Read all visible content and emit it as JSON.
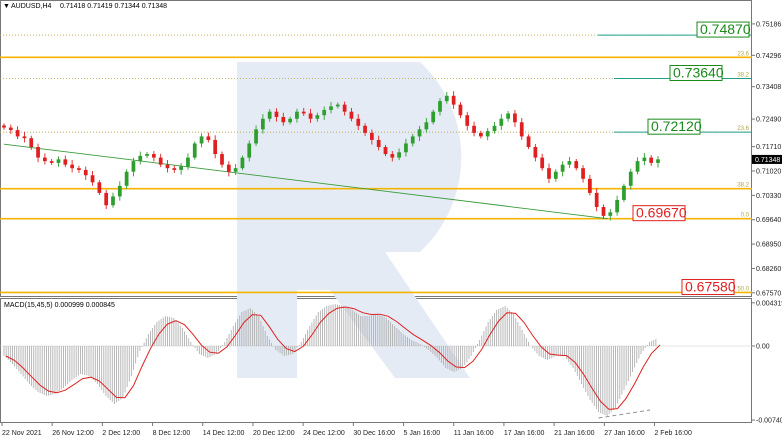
{
  "header": {
    "menu_icon": "triangle-down-icon",
    "symbol": "AUDUSD,H4",
    "quotes": "0.71418 0.71419 0.71344 0.71348"
  },
  "macd_header": {
    "label": "MACD(15,45,5) 0.000999 0.000845"
  },
  "watermark_icon": "r-logo-watermark",
  "colors": {
    "bull": "#2e9e2e",
    "bear": "#e02020",
    "fib_line": "#b5a642",
    "gold_line": "#f5b400",
    "target_green": "#1a8a1a",
    "target_red": "#e02020",
    "teal": "#1f9e8e",
    "trend": "#3a9a3a",
    "price_box": "#000000",
    "macd_hist": "#b0b0b0",
    "macd_signal": "#e02020"
  },
  "chart_data": [
    {
      "type": "candlestick",
      "ylim": [
        0.6748,
        0.7558
      ],
      "y_ticks": [
        "0.75186",
        "0.74296",
        "0.73408",
        "0.72490",
        "0.71710",
        "0.71020",
        "0.70330",
        "0.69640",
        "0.68950",
        "0.68260",
        "0.67570"
      ],
      "x_ticks": [
        "22 Nov 2021",
        "26 Nov 12:00",
        "2 Dec 12:00",
        "8 Dec 12:00",
        "14 Dec 12:00",
        "20 Dec 12:00",
        "24 Dec 12:00",
        "30 Dec 16:00",
        "5 Jan 16:00",
        "11 Jan 16:00",
        "17 Jan 16:00",
        "21 Jan 16:00",
        "27 Jan 16:00",
        "2 Feb 16:00"
      ],
      "current_price": "0.71348",
      "close_series": [
        0.7225,
        0.7218,
        0.72,
        0.7195,
        0.717,
        0.714,
        0.713,
        0.7125,
        0.7135,
        0.712,
        0.711,
        0.7105,
        0.709,
        0.707,
        0.704,
        0.7005,
        0.703,
        0.706,
        0.71,
        0.713,
        0.7145,
        0.715,
        0.714,
        0.712,
        0.711,
        0.7105,
        0.7115,
        0.714,
        0.718,
        0.72,
        0.719,
        0.715,
        0.712,
        0.71,
        0.711,
        0.714,
        0.718,
        0.722,
        0.725,
        0.727,
        0.7255,
        0.724,
        0.725,
        0.727,
        0.7265,
        0.725,
        0.726,
        0.7275,
        0.7285,
        0.729,
        0.727,
        0.725,
        0.723,
        0.721,
        0.719,
        0.717,
        0.715,
        0.714,
        0.7155,
        0.718,
        0.72,
        0.722,
        0.724,
        0.727,
        0.73,
        0.7315,
        0.729,
        0.726,
        0.723,
        0.721,
        0.72,
        0.7215,
        0.723,
        0.725,
        0.7265,
        0.724,
        0.72,
        0.717,
        0.714,
        0.711,
        0.708,
        0.71,
        0.712,
        0.713,
        0.711,
        0.708,
        0.704,
        0.7,
        0.6975,
        0.6985,
        0.702,
        0.706,
        0.71,
        0.713,
        0.714,
        0.7125,
        0.7135
      ],
      "fib_levels": [
        {
          "label": "50.0",
          "value": 0.7487
        },
        {
          "label": "23.6",
          "value": 0.7424
        },
        {
          "label": "38.2",
          "value": 0.7364
        },
        {
          "label": "23.6",
          "value": 0.7212
        },
        {
          "label": "38.2",
          "value": 0.7052
        },
        {
          "label": "0.0",
          "value": 0.6967
        },
        {
          "label": "50.0",
          "value": 0.6758
        }
      ],
      "gold_levels": [
        0.7424,
        0.7052,
        0.6967,
        0.6758
      ],
      "targets": [
        {
          "label": "0.74870",
          "value": 0.7487,
          "color": "green"
        },
        {
          "label": "0.73640",
          "value": 0.7364,
          "color": "green"
        },
        {
          "label": "0.72120",
          "value": 0.7212,
          "color": "green"
        },
        {
          "label": "0.69670",
          "value": 0.6967,
          "color": "red"
        },
        {
          "label": "0.67580",
          "value": 0.6758,
          "color": "red"
        }
      ],
      "trend_line": {
        "start": {
          "bar": 0,
          "value": 0.7178
        },
        "end": {
          "bar": 88,
          "value": 0.6967
        }
      }
    },
    {
      "type": "macd",
      "ylim": [
        -0.0076,
        0.0046
      ],
      "y_ticks": [
        "0.004319",
        "0.00",
        "-0.007408"
      ],
      "histogram_values": [
        -0.001,
        -0.0018,
        -0.0028,
        -0.0038,
        -0.0046,
        -0.005,
        -0.0048,
        -0.0042,
        -0.0034,
        -0.0028,
        -0.003,
        -0.0038,
        -0.005,
        -0.0058,
        -0.0052,
        -0.003,
        -0.0005,
        0.0012,
        0.0024,
        0.003,
        0.0028,
        0.0018,
        0.0004,
        -0.0008,
        -0.0012,
        -0.0008,
        0.0004,
        0.002,
        0.0034,
        0.0038,
        0.003,
        0.001,
        -0.0004,
        -0.001,
        -0.0008,
        0.0004,
        0.002,
        0.0034,
        0.004,
        0.0042,
        0.004,
        0.0036,
        0.003,
        0.003,
        0.0032,
        0.0028,
        0.002,
        0.0012,
        0.0006,
        0.0002,
        -0.0004,
        -0.0012,
        -0.0022,
        -0.0026,
        -0.0022,
        -0.001,
        0.0006,
        0.0024,
        0.0036,
        0.004,
        0.0032,
        0.0016,
        0.0,
        -0.001,
        -0.0014,
        -0.001,
        -0.001,
        -0.0022,
        -0.0038,
        -0.0054,
        -0.0066,
        -0.007,
        -0.0062,
        -0.0044,
        -0.0026,
        -0.0008,
        0.0004,
        0.0008
      ]
    }
  ]
}
